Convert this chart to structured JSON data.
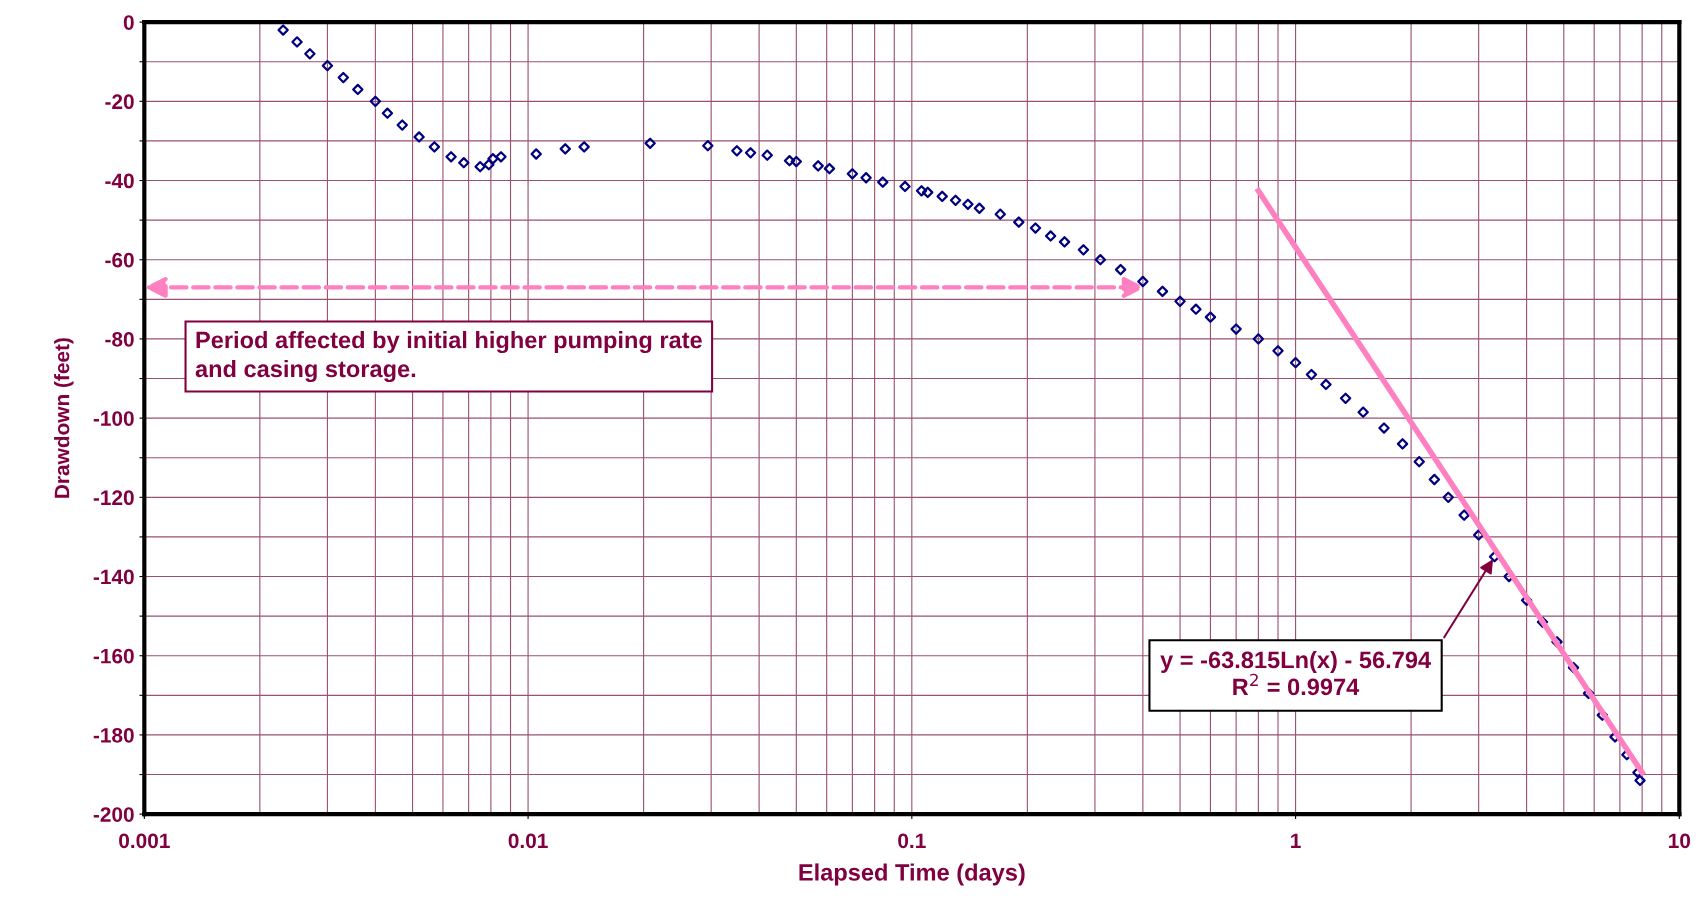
{
  "chart_data": {
    "type": "scatter",
    "xlabel": "Elapsed Time (days)",
    "ylabel": "Drawdown (feet)",
    "log": "x",
    "xlim": [
      0.001,
      10
    ],
    "xticks": [
      0.001,
      0.01,
      0.1,
      1,
      10
    ],
    "ylim": [
      -200,
      0
    ],
    "yticks": [
      0,
      {
        "value": -10,
        "label": null
      },
      -20,
      {
        "value": -30,
        "label": null
      },
      -40,
      {
        "value": -50,
        "label": null
      },
      -60,
      {
        "value": -70,
        "label": null
      },
      -80,
      {
        "value": -90,
        "label": null
      },
      -100,
      {
        "value": -110,
        "label": null
      },
      -120,
      {
        "value": -130,
        "label": null
      },
      -140,
      {
        "value": -150,
        "label": null
      },
      -160,
      {
        "value": -170,
        "label": null
      },
      -180,
      {
        "value": -190,
        "label": null
      },
      -200
    ],
    "grid": true,
    "marker": "diamond",
    "series": [
      {
        "color": "#000080",
        "x": [
          0.0023,
          0.0025,
          0.0027,
          0.003,
          0.0033,
          0.0036,
          0.004,
          0.0043,
          0.0047,
          0.0052,
          0.0057,
          0.0063,
          0.0068,
          0.0075,
          0.0079,
          0.0081,
          0.0085,
          0.0105,
          0.0125,
          0.014,
          0.0208,
          0.0294,
          0.035,
          0.038,
          0.042,
          0.048,
          0.05,
          0.057,
          0.061,
          0.07,
          0.076,
          0.084,
          0.096,
          0.106,
          0.11,
          0.12,
          0.13,
          0.14,
          0.15,
          0.17,
          0.19,
          0.21,
          0.23,
          0.25,
          0.28,
          0.31,
          0.35,
          0.4,
          0.45,
          0.5,
          0.55,
          0.6,
          0.7,
          0.8,
          0.9,
          1.0,
          1.1,
          1.2,
          1.35,
          1.5,
          1.7,
          1.9,
          2.1,
          2.3,
          2.5,
          2.75,
          3.0,
          3.3,
          3.6,
          4.0,
          4.4,
          4.8,
          5.3,
          5.8,
          6.3,
          6.8,
          7.3,
          7.8,
          7.9
        ],
        "values": [
          -2,
          -5,
          -8,
          -11,
          -14,
          -17,
          -20,
          -23,
          -26,
          -29,
          -31.5,
          -34,
          -35.5,
          -36.5,
          -36,
          -34.5,
          -34,
          -33.3,
          -32,
          -31.5,
          -30.6,
          -31.2,
          -32.5,
          -33,
          -33.6,
          -35,
          -35.2,
          -36.3,
          -37,
          -38.3,
          -39.3,
          -40.4,
          -41.5,
          -42.6,
          -43,
          -44,
          -45,
          -46,
          -47,
          -48.5,
          -50.5,
          -52,
          -54,
          -55.5,
          -57.5,
          -60,
          -62.5,
          -65.5,
          -68,
          -70.5,
          -72.5,
          -74.5,
          -77.5,
          -80,
          -83,
          -86,
          -89,
          -91.5,
          -95,
          -98.5,
          -102.5,
          -106.5,
          -111,
          -115.5,
          -120,
          -124.5,
          -129.5,
          -135,
          -140,
          -146,
          -151.5,
          -156.5,
          -163,
          -169.5,
          -175,
          -180.5,
          -185,
          -189.5,
          -191.5
        ]
      },
      {
        "type": "line",
        "color": "#ff80c0",
        "marker": "none",
        "x": [
          0.8,
          8
        ],
        "values": [
          -42.6,
          -189.5
        ]
      }
    ],
    "annotations": [
      "Period affected by initial higher pumping rate\nand casing storage.",
      {
        "text": "y = -63.815Ln(x) - 56.794\nR$^{2}$ = 0.9974",
        "x": 3.3,
        "y": -135
      }
    ]
  }
}
